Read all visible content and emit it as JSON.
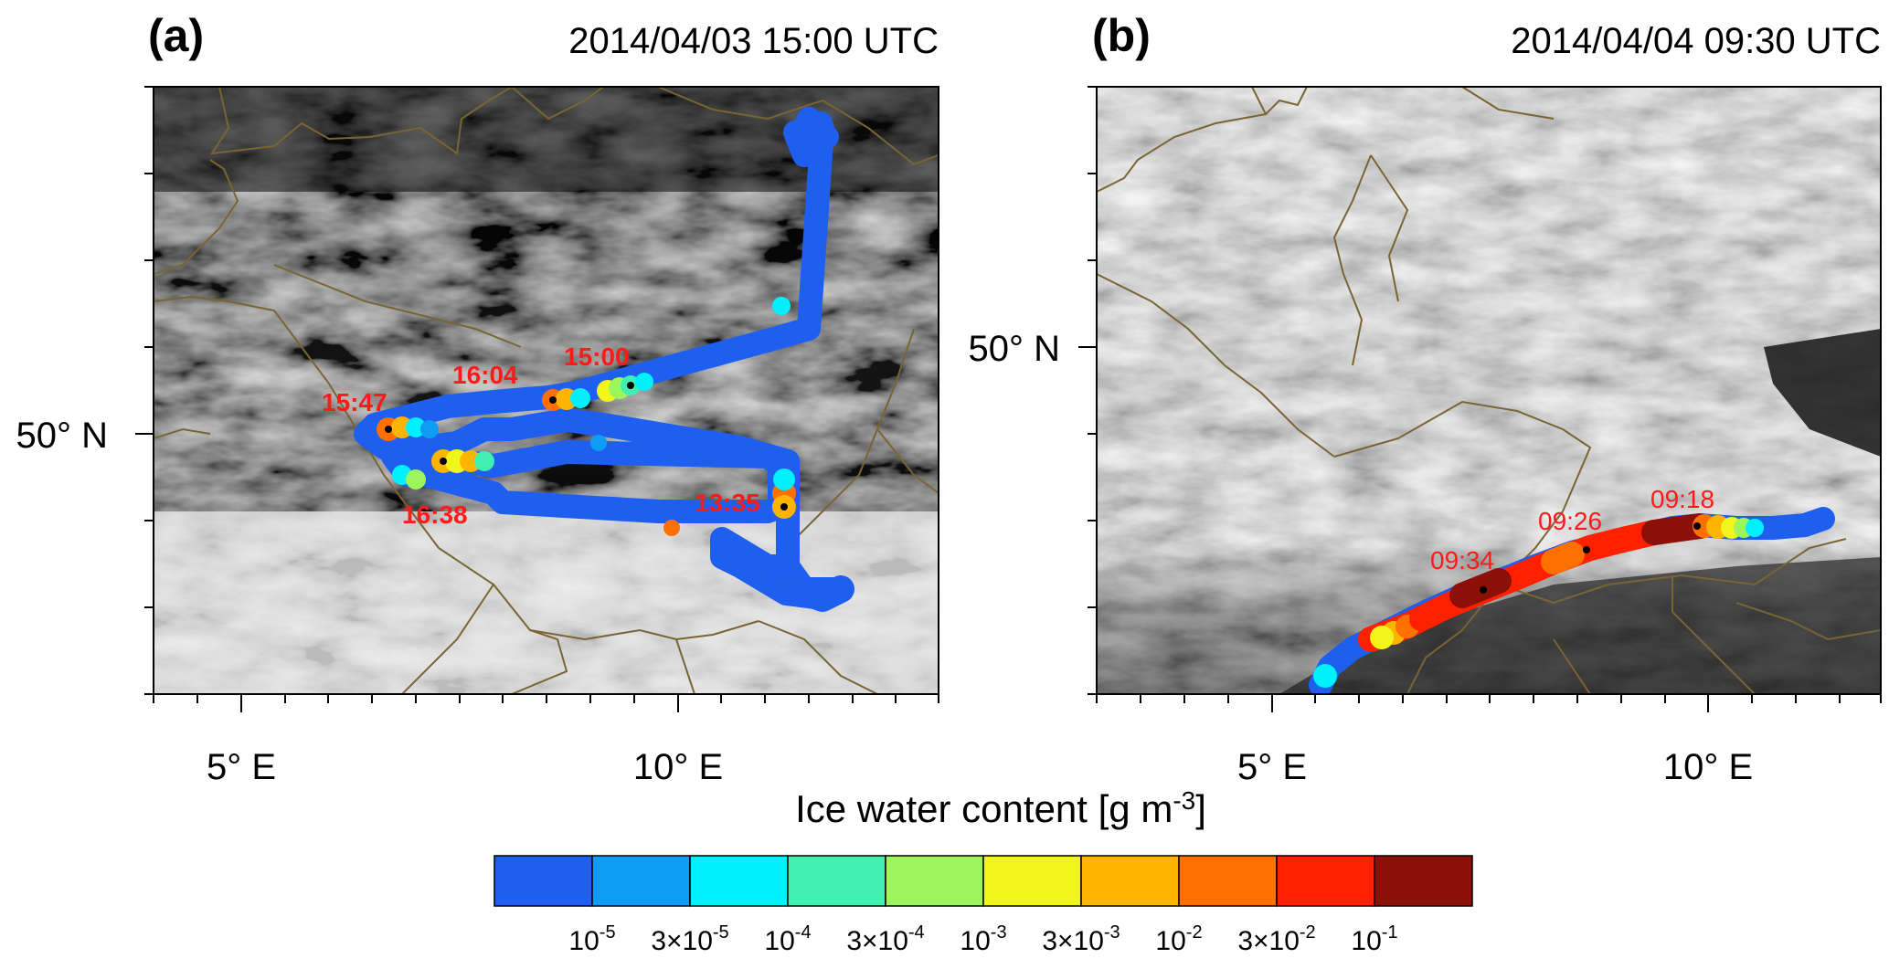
{
  "panels": [
    {
      "label": "(a)",
      "datetime": "2014/04/03 15:00 UTC",
      "x_tick_labels": [
        "5° E",
        "10° E"
      ],
      "y_tick_labels": [
        "50° N"
      ],
      "time_labels": [
        "15:47",
        "16:04",
        "15:00",
        "16:38",
        "13:35"
      ]
    },
    {
      "label": "(b)",
      "datetime": "2014/04/04 09:30 UTC",
      "x_tick_labels": [
        "5° E",
        "10° E"
      ],
      "y_tick_labels": [
        "50° N"
      ],
      "time_labels": [
        "09:34",
        "09:26",
        "09:18"
      ]
    }
  ],
  "colorbar": {
    "title_text": "Ice water content [g m",
    "title_exp": "-3",
    "title_close": "]",
    "colors": [
      "#1f5ff0",
      "#0f9cf5",
      "#00f0ff",
      "#3ff0b0",
      "#9cf55a",
      "#f0f51a",
      "#ffb400",
      "#ff7000",
      "#ff2000",
      "#8c1008"
    ],
    "tick_labels": [
      {
        "mant": "10",
        "exp": "-5"
      },
      {
        "mant": "3×10",
        "exp": "-5"
      },
      {
        "mant": "10",
        "exp": "-4"
      },
      {
        "mant": "3×10",
        "exp": "-4"
      },
      {
        "mant": "10",
        "exp": "-3"
      },
      {
        "mant": "3×10",
        "exp": "-3"
      },
      {
        "mant": "10",
        "exp": "-2"
      },
      {
        "mant": "3×10",
        "exp": "-2"
      },
      {
        "mant": "10",
        "exp": "-1"
      }
    ]
  },
  "colors": {
    "track_base": "#1f5ff0",
    "coastline": "#7a6432",
    "time_label": "#ff1a1a"
  }
}
